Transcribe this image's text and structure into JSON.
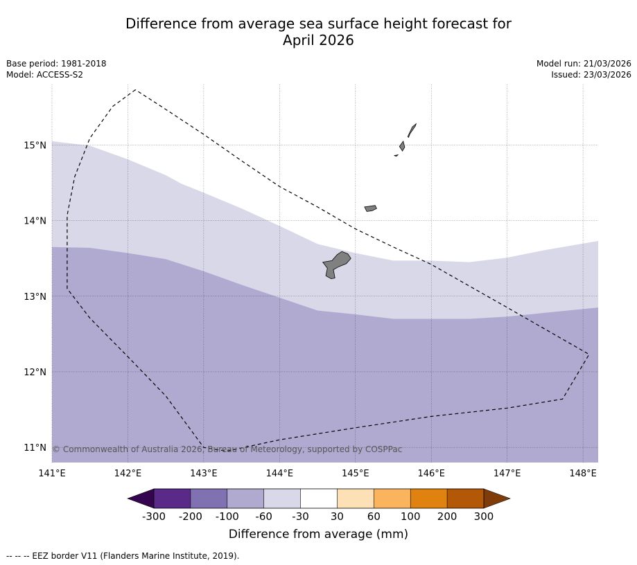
{
  "title_line1": "Difference from average sea surface height forecast for",
  "title_line2": "April 2026",
  "meta_left": {
    "base_period": "Base period: 1981-2018",
    "model": "Model: ACCESS-S2"
  },
  "meta_right": {
    "model_run": "Model run: 21/03/2026",
    "issued": "Issued: 23/03/2026"
  },
  "map": {
    "lon_range": [
      141.0,
      148.2
    ],
    "lat_range": [
      10.8,
      15.8
    ],
    "lon_ticks": [
      {
        "value": 141,
        "label": "141°E"
      },
      {
        "value": 142,
        "label": "142°E"
      },
      {
        "value": 143,
        "label": "143°E"
      },
      {
        "value": 144,
        "label": "144°E"
      },
      {
        "value": 145,
        "label": "145°E"
      },
      {
        "value": 146,
        "label": "146°E"
      },
      {
        "value": 147,
        "label": "147°E"
      },
      {
        "value": 148,
        "label": "148°E"
      }
    ],
    "lat_ticks": [
      {
        "value": 15,
        "label": "15°N"
      },
      {
        "value": 14,
        "label": "14°N"
      },
      {
        "value": 13,
        "label": "13°N"
      },
      {
        "value": 12,
        "label": "12°N"
      },
      {
        "value": 11,
        "label": "11°N"
      }
    ],
    "copyright": "© Commonwealth of Australia 2026, Bureau of Meteorology, supported by COSPPac",
    "zones": [
      {
        "name": "-30 to -60 mm",
        "color": "#d8d8e9",
        "boundary": [
          [
            141.0,
            15.05
          ],
          [
            141.5,
            14.99
          ],
          [
            142.0,
            14.81
          ],
          [
            142.5,
            14.6
          ],
          [
            142.7,
            14.49
          ],
          [
            143.0,
            14.37
          ],
          [
            143.5,
            14.16
          ],
          [
            144.0,
            13.93
          ],
          [
            144.5,
            13.69
          ],
          [
            145.0,
            13.57
          ],
          [
            145.5,
            13.47
          ],
          [
            146.0,
            13.47
          ],
          [
            146.5,
            13.45
          ],
          [
            147.0,
            13.51
          ],
          [
            147.5,
            13.61
          ],
          [
            148.2,
            13.73
          ]
        ]
      },
      {
        "name": "-60 to -100 mm",
        "color": "#b0aad0",
        "boundary": [
          [
            141.0,
            13.65
          ],
          [
            141.5,
            13.64
          ],
          [
            142.0,
            13.57
          ],
          [
            142.5,
            13.49
          ],
          [
            143.0,
            13.33
          ],
          [
            143.5,
            13.15
          ],
          [
            144.0,
            12.98
          ],
          [
            144.5,
            12.81
          ],
          [
            145.0,
            12.76
          ],
          [
            145.5,
            12.7
          ],
          [
            146.0,
            12.7
          ],
          [
            146.5,
            12.7
          ],
          [
            147.0,
            12.73
          ],
          [
            147.5,
            12.78
          ],
          [
            148.2,
            12.85
          ]
        ]
      }
    ],
    "eez_border": [
      [
        142.1,
        15.73
      ],
      [
        141.8,
        15.51
      ],
      [
        141.5,
        15.09
      ],
      [
        141.3,
        14.58
      ],
      [
        141.2,
        14.07
      ],
      [
        141.2,
        13.5
      ],
      [
        141.2,
        13.1
      ],
      [
        141.5,
        12.71
      ],
      [
        142.0,
        12.2
      ],
      [
        142.5,
        11.68
      ],
      [
        143.0,
        11.0
      ],
      [
        143.3,
        10.95
      ],
      [
        144.0,
        11.1
      ],
      [
        145.0,
        11.26
      ],
      [
        146.0,
        11.41
      ],
      [
        147.0,
        11.52
      ],
      [
        147.73,
        11.64
      ],
      [
        148.08,
        12.23
      ],
      [
        147.0,
        12.85
      ],
      [
        146.0,
        13.42
      ],
      [
        145.5,
        13.65
      ],
      [
        145.0,
        13.89
      ],
      [
        144.5,
        14.18
      ],
      [
        144.0,
        14.45
      ],
      [
        143.5,
        14.79
      ],
      [
        143.0,
        15.14
      ],
      [
        142.5,
        15.47
      ],
      [
        142.1,
        15.73
      ]
    ],
    "islands": [
      {
        "name": "Guam",
        "coords": [
          [
            144.82,
            13.59
          ],
          [
            144.9,
            13.56
          ],
          [
            144.94,
            13.5
          ],
          [
            144.88,
            13.43
          ],
          [
            144.78,
            13.39
          ],
          [
            144.71,
            13.35
          ],
          [
            144.73,
            13.24
          ],
          [
            144.68,
            13.23
          ],
          [
            144.61,
            13.27
          ],
          [
            144.63,
            13.37
          ],
          [
            144.57,
            13.45
          ],
          [
            144.69,
            13.47
          ],
          [
            144.76,
            13.55
          ]
        ]
      },
      {
        "name": "Rota",
        "coords": [
          [
            145.12,
            14.18
          ],
          [
            145.26,
            14.2
          ],
          [
            145.28,
            14.16
          ],
          [
            145.22,
            14.13
          ],
          [
            145.15,
            14.12
          ]
        ]
      },
      {
        "name": "Tinian",
        "coords": [
          [
            145.58,
            14.98
          ],
          [
            145.63,
            15.05
          ],
          [
            145.65,
            14.97
          ],
          [
            145.62,
            14.92
          ],
          [
            145.6,
            14.95
          ]
        ]
      },
      {
        "name": "Saipan",
        "coords": [
          [
            145.69,
            15.11
          ],
          [
            145.75,
            15.24
          ],
          [
            145.8,
            15.28
          ],
          [
            145.79,
            15.25
          ],
          [
            145.72,
            15.15
          ],
          [
            145.7,
            15.1
          ]
        ]
      },
      {
        "name": "Aguijan",
        "coords": [
          [
            145.51,
            14.86
          ],
          [
            145.56,
            14.87
          ],
          [
            145.54,
            14.85
          ]
        ]
      }
    ]
  },
  "colorbar": {
    "label": "Difference from average (mm)",
    "segments": [
      {
        "range": "-300 to -200",
        "color": "#5a2a8a"
      },
      {
        "range": "-200 to -100",
        "color": "#8072b1"
      },
      {
        "range": "-100 to -60",
        "color": "#b0aad0"
      },
      {
        "range": "-60 to -30",
        "color": "#d8d8e9"
      },
      {
        "range": "-30 to 30",
        "color": "#ffffff"
      },
      {
        "range": "30 to 60",
        "color": "#fde0b5"
      },
      {
        "range": "60 to 100",
        "color": "#fbb45e"
      },
      {
        "range": "100 to 200",
        "color": "#e0820f"
      },
      {
        "range": "200 to 300",
        "color": "#b35806"
      }
    ],
    "under_color": "#35044f",
    "over_color": "#7f3b08",
    "ticks": [
      "-300",
      "-200",
      "-100",
      "-60",
      "-30",
      "30",
      "60",
      "100",
      "200",
      "300"
    ]
  },
  "footer": "--  --  -- EEZ border V11 (Flanders Marine Institute, 2019)."
}
